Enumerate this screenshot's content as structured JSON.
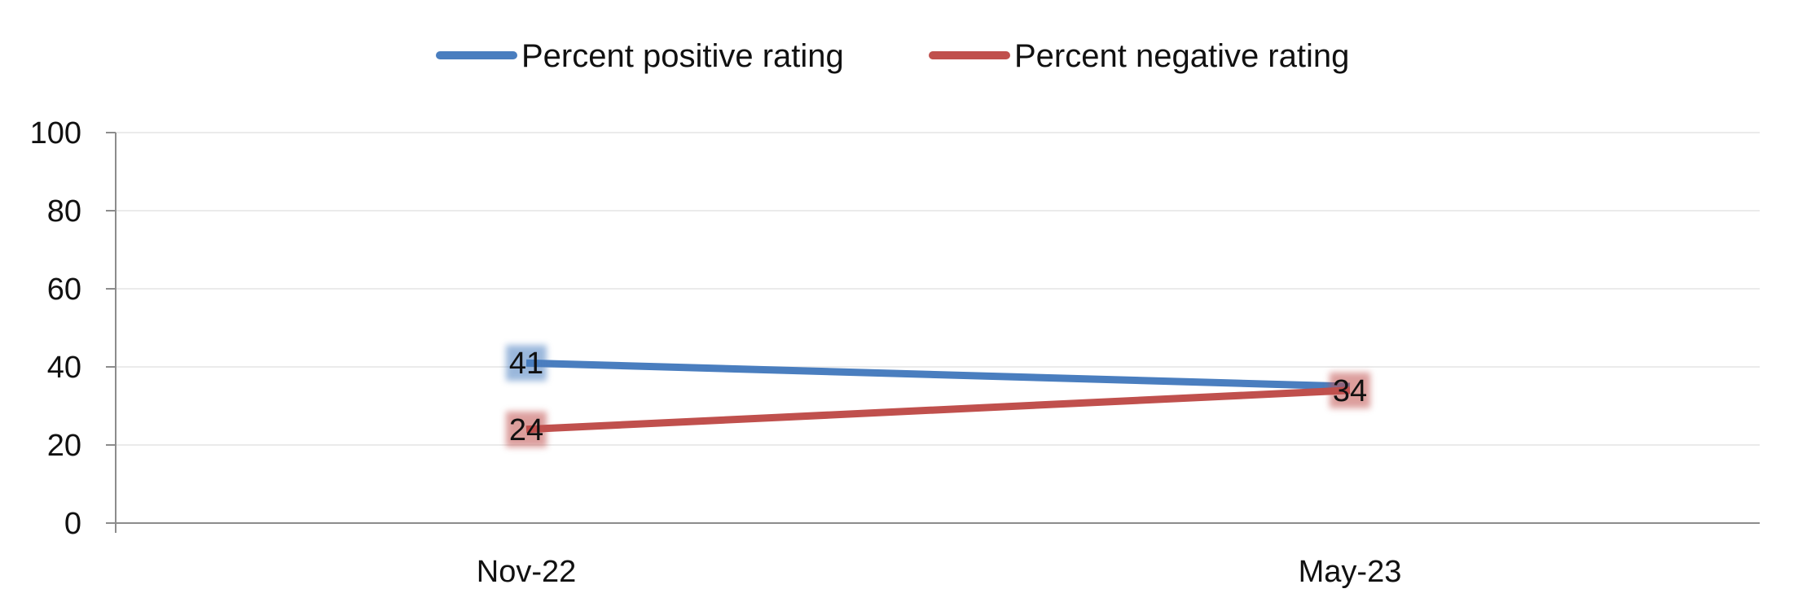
{
  "chart_data": {
    "type": "line",
    "categories": [
      "Nov-22",
      "May-23"
    ],
    "series": [
      {
        "name": "Percent positive rating",
        "values": [
          41,
          35
        ],
        "color": "#4a7ebf",
        "labels": [
          "41",
          ""
        ]
      },
      {
        "name": "Percent negative rating",
        "values": [
          24,
          34
        ],
        "color": "#c0504d",
        "labels": [
          "24",
          "34"
        ]
      }
    ],
    "yticks": [
      0,
      20,
      40,
      60,
      80,
      100
    ],
    "ylim": [
      0,
      100
    ],
    "grid": true,
    "legend": "top-center"
  }
}
